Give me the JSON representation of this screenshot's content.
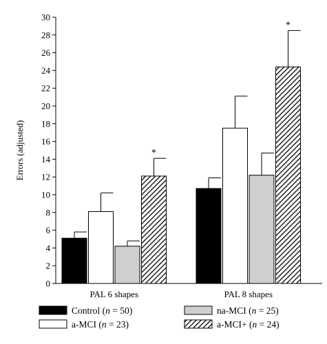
{
  "chart_data": {
    "type": "bar",
    "title": "",
    "xlabel": "",
    "ylabel": "Errors (adjusted)",
    "ylim": [
      0,
      30
    ],
    "yticks": [
      0,
      2,
      4,
      6,
      8,
      10,
      12,
      14,
      16,
      18,
      20,
      22,
      24,
      26,
      28,
      30
    ],
    "grid": false,
    "legend_position": "bottom",
    "categories": [
      "PAL 6 shapes",
      "PAL 8 shapes"
    ],
    "series": [
      {
        "name": "Control",
        "n_label": "(n = 50)",
        "fill": "black",
        "values": [
          5.1,
          10.7
        ],
        "error": [
          0.7,
          1.2
        ],
        "significant": [
          false,
          false
        ]
      },
      {
        "name": "a-MCI",
        "n_label": "(n = 23)",
        "fill": "white",
        "values": [
          8.1,
          17.5
        ],
        "error": [
          2.1,
          3.6
        ],
        "significant": [
          false,
          false
        ]
      },
      {
        "name": "na-MCI",
        "n_label": "(n = 25)",
        "fill": "lightgray",
        "values": [
          4.2,
          12.2
        ],
        "error": [
          0.6,
          2.5
        ],
        "significant": [
          false,
          false
        ]
      },
      {
        "name": "a-MCI+",
        "n_label": "(n = 24)",
        "fill": "hatched",
        "values": [
          12.1,
          24.4
        ],
        "error": [
          2.0,
          4.1
        ],
        "significant": [
          true,
          true
        ]
      }
    ],
    "significance_marker": "*"
  }
}
